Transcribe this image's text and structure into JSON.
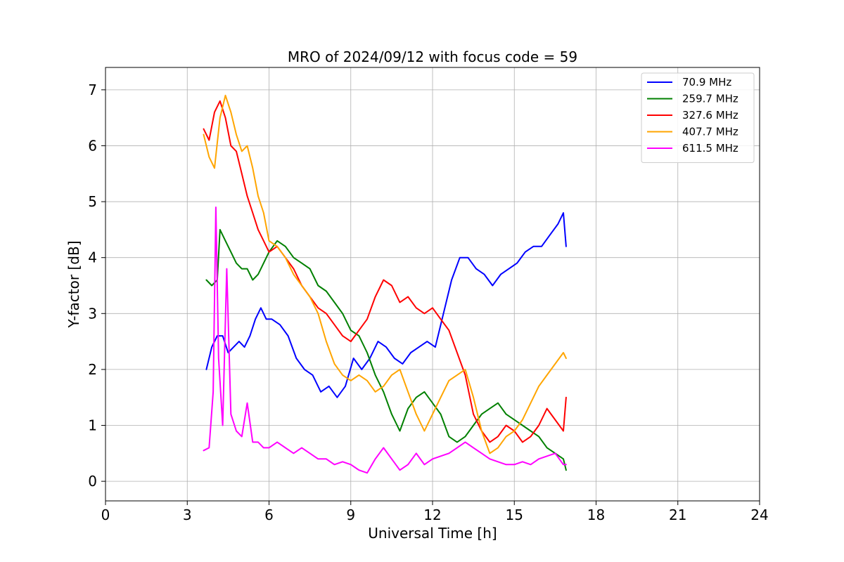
{
  "chart_data": {
    "type": "line",
    "title": "MRO of 2024/09/12 with focus code = 59",
    "xlabel": "Universal Time [h]",
    "ylabel": "Y-factor [dB]",
    "xlim": [
      0,
      24
    ],
    "ylim": [
      -0.35,
      7.4
    ],
    "xticks": [
      0,
      3,
      6,
      9,
      12,
      15,
      18,
      21,
      24
    ],
    "yticks": [
      0,
      1,
      2,
      3,
      4,
      5,
      6,
      7
    ],
    "grid": true,
    "legend_position": "top-right",
    "series": [
      {
        "name": "70.9 MHz",
        "color": "#0000ff",
        "x": [
          3.7,
          3.9,
          4.1,
          4.3,
          4.5,
          4.7,
          4.9,
          5.1,
          5.3,
          5.5,
          5.7,
          5.9,
          6.1,
          6.4,
          6.7,
          7.0,
          7.3,
          7.6,
          7.9,
          8.2,
          8.5,
          8.8,
          9.1,
          9.4,
          9.7,
          10.0,
          10.3,
          10.6,
          10.9,
          11.2,
          11.5,
          11.8,
          12.1,
          12.4,
          12.7,
          13.0,
          13.3,
          13.6,
          13.9,
          14.2,
          14.5,
          14.8,
          15.1,
          15.4,
          15.7,
          16.0,
          16.3,
          16.6,
          16.8,
          16.9
        ],
        "y": [
          2.0,
          2.4,
          2.6,
          2.6,
          2.3,
          2.4,
          2.5,
          2.4,
          2.6,
          2.9,
          3.1,
          2.9,
          2.9,
          2.8,
          2.6,
          2.2,
          2.0,
          1.9,
          1.6,
          1.7,
          1.5,
          1.7,
          2.2,
          2.0,
          2.2,
          2.5,
          2.4,
          2.2,
          2.1,
          2.3,
          2.4,
          2.5,
          2.4,
          3.0,
          3.6,
          4.0,
          4.0,
          3.8,
          3.7,
          3.5,
          3.7,
          3.8,
          3.9,
          4.1,
          4.2,
          4.2,
          4.4,
          4.6,
          4.8,
          4.2
        ]
      },
      {
        "name": "259.7 MHz",
        "color": "#008000",
        "x": [
          3.7,
          3.9,
          4.1,
          4.2,
          4.4,
          4.6,
          4.8,
          5.0,
          5.2,
          5.4,
          5.6,
          5.8,
          6.0,
          6.3,
          6.6,
          6.9,
          7.2,
          7.5,
          7.8,
          8.1,
          8.4,
          8.7,
          9.0,
          9.3,
          9.6,
          9.9,
          10.2,
          10.5,
          10.8,
          11.1,
          11.4,
          11.7,
          12.0,
          12.3,
          12.6,
          12.9,
          13.2,
          13.5,
          13.8,
          14.1,
          14.4,
          14.7,
          15.0,
          15.3,
          15.6,
          15.9,
          16.2,
          16.5,
          16.8,
          16.9
        ],
        "y": [
          3.6,
          3.5,
          3.6,
          4.5,
          4.3,
          4.1,
          3.9,
          3.8,
          3.8,
          3.6,
          3.7,
          3.9,
          4.1,
          4.3,
          4.2,
          4.0,
          3.9,
          3.8,
          3.5,
          3.4,
          3.2,
          3.0,
          2.7,
          2.6,
          2.3,
          1.9,
          1.6,
          1.2,
          0.9,
          1.3,
          1.5,
          1.6,
          1.4,
          1.2,
          0.8,
          0.7,
          0.8,
          1.0,
          1.2,
          1.3,
          1.4,
          1.2,
          1.1,
          1.0,
          0.9,
          0.8,
          0.6,
          0.5,
          0.4,
          0.2
        ]
      },
      {
        "name": "327.6 MHz",
        "color": "#ff0000",
        "x": [
          3.6,
          3.8,
          4.0,
          4.2,
          4.4,
          4.6,
          4.8,
          5.0,
          5.2,
          5.4,
          5.6,
          5.8,
          6.0,
          6.3,
          6.6,
          6.9,
          7.2,
          7.5,
          7.8,
          8.1,
          8.4,
          8.7,
          9.0,
          9.3,
          9.6,
          9.9,
          10.2,
          10.5,
          10.8,
          11.1,
          11.4,
          11.7,
          12.0,
          12.3,
          12.6,
          12.9,
          13.2,
          13.5,
          13.8,
          14.1,
          14.4,
          14.7,
          15.0,
          15.3,
          15.6,
          15.9,
          16.2,
          16.5,
          16.8,
          16.9
        ],
        "y": [
          6.3,
          6.1,
          6.6,
          6.8,
          6.5,
          6.0,
          5.9,
          5.5,
          5.1,
          4.8,
          4.5,
          4.3,
          4.1,
          4.2,
          4.0,
          3.8,
          3.5,
          3.3,
          3.1,
          3.0,
          2.8,
          2.6,
          2.5,
          2.7,
          2.9,
          3.3,
          3.6,
          3.5,
          3.2,
          3.3,
          3.1,
          3.0,
          3.1,
          2.9,
          2.7,
          2.3,
          1.9,
          1.2,
          0.9,
          0.7,
          0.8,
          1.0,
          0.9,
          0.7,
          0.8,
          1.0,
          1.3,
          1.1,
          0.9,
          1.5
        ]
      },
      {
        "name": "407.7 MHz",
        "color": "#ffa500",
        "x": [
          3.6,
          3.8,
          4.0,
          4.2,
          4.4,
          4.6,
          4.8,
          5.0,
          5.2,
          5.4,
          5.6,
          5.8,
          6.0,
          6.3,
          6.6,
          6.9,
          7.2,
          7.5,
          7.8,
          8.1,
          8.4,
          8.7,
          9.0,
          9.3,
          9.6,
          9.9,
          10.2,
          10.5,
          10.8,
          11.1,
          11.4,
          11.7,
          12.0,
          12.3,
          12.6,
          12.9,
          13.2,
          13.5,
          13.8,
          14.1,
          14.4,
          14.7,
          15.0,
          15.3,
          15.6,
          15.9,
          16.2,
          16.5,
          16.8,
          16.9
        ],
        "y": [
          6.2,
          5.8,
          5.6,
          6.5,
          6.9,
          6.6,
          6.2,
          5.9,
          6.0,
          5.6,
          5.1,
          4.8,
          4.3,
          4.2,
          4.0,
          3.7,
          3.5,
          3.3,
          3.0,
          2.5,
          2.1,
          1.9,
          1.8,
          1.9,
          1.8,
          1.6,
          1.7,
          1.9,
          2.0,
          1.6,
          1.2,
          0.9,
          1.2,
          1.5,
          1.8,
          1.9,
          2.0,
          1.5,
          0.9,
          0.5,
          0.6,
          0.8,
          0.9,
          1.1,
          1.4,
          1.7,
          1.9,
          2.1,
          2.3,
          2.2
        ]
      },
      {
        "name": "611.5 MHz",
        "color": "#ff00ff",
        "x": [
          3.6,
          3.8,
          3.95,
          4.05,
          4.15,
          4.3,
          4.45,
          4.6,
          4.8,
          5.0,
          5.2,
          5.4,
          5.6,
          5.8,
          6.0,
          6.3,
          6.6,
          6.9,
          7.2,
          7.5,
          7.8,
          8.1,
          8.4,
          8.7,
          9.0,
          9.3,
          9.6,
          9.9,
          10.2,
          10.5,
          10.8,
          11.1,
          11.4,
          11.7,
          12.0,
          12.3,
          12.6,
          12.9,
          13.2,
          13.5,
          13.8,
          14.1,
          14.4,
          14.7,
          15.0,
          15.3,
          15.6,
          15.9,
          16.2,
          16.5,
          16.8,
          16.9
        ],
        "y": [
          0.55,
          0.6,
          1.6,
          4.9,
          2.2,
          1.0,
          3.8,
          1.2,
          0.9,
          0.8,
          1.4,
          0.7,
          0.7,
          0.6,
          0.6,
          0.7,
          0.6,
          0.5,
          0.6,
          0.5,
          0.4,
          0.4,
          0.3,
          0.35,
          0.3,
          0.2,
          0.15,
          0.4,
          0.6,
          0.4,
          0.2,
          0.3,
          0.5,
          0.3,
          0.4,
          0.45,
          0.5,
          0.6,
          0.7,
          0.6,
          0.5,
          0.4,
          0.35,
          0.3,
          0.3,
          0.35,
          0.3,
          0.4,
          0.45,
          0.5,
          0.3,
          0.3
        ]
      }
    ]
  }
}
